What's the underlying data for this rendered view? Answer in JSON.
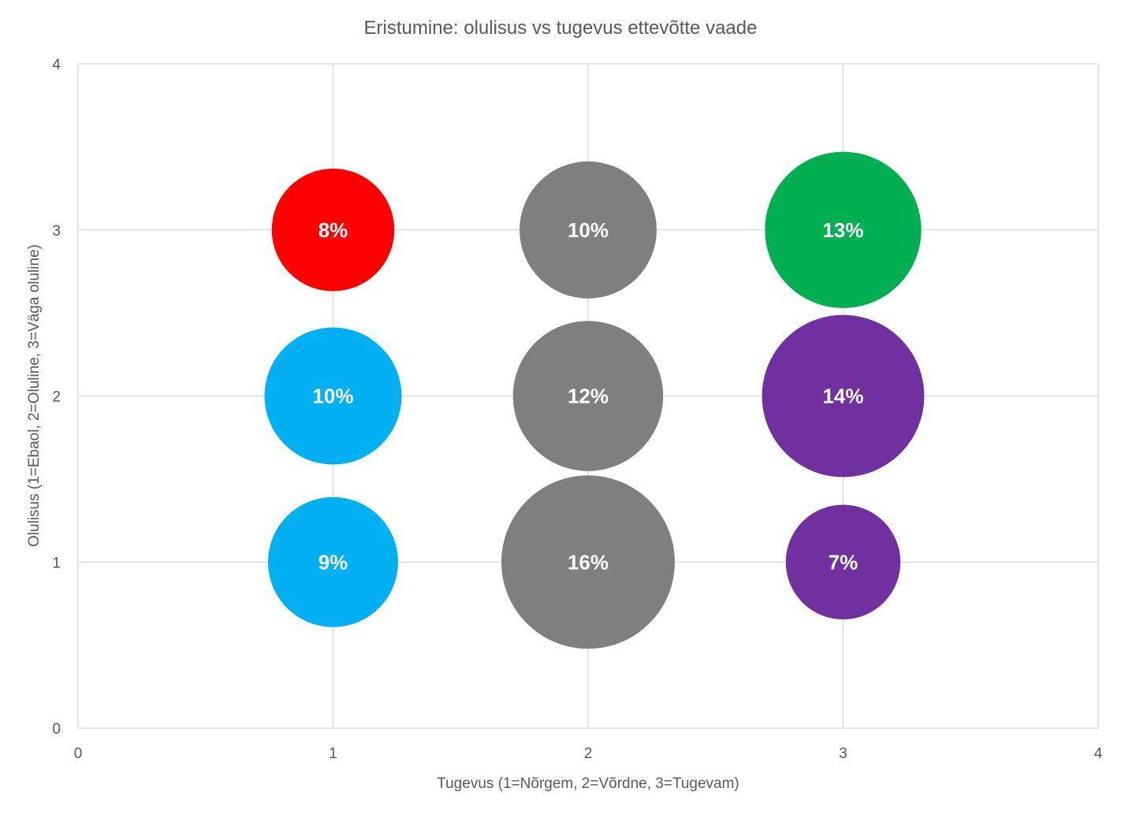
{
  "chart_data": {
    "type": "bubble",
    "title": "Eristumine: olulisus vs tugevus ettevõtte vaade",
    "xlabel": "Tugevus (1=Nõrgem, 2=Võrdne, 3=Tugevam)",
    "ylabel": "Olulisus (1=Ebaol, 2=Oluline, 3=Väga oluline)",
    "xlim": [
      0,
      4
    ],
    "ylim": [
      0,
      4
    ],
    "xticks": [
      "0",
      "1",
      "2",
      "3",
      "4"
    ],
    "yticks": [
      "0",
      "1",
      "2",
      "3",
      "4"
    ],
    "grid": true,
    "legend": "none",
    "points": [
      {
        "x": 1,
        "y": 3,
        "size": 8,
        "label": "8%",
        "color": "#FF0000"
      },
      {
        "x": 2,
        "y": 3,
        "size": 10,
        "label": "10%",
        "color": "#7F7F7F"
      },
      {
        "x": 3,
        "y": 3,
        "size": 13,
        "label": "13%",
        "color": "#00B050"
      },
      {
        "x": 1,
        "y": 2,
        "size": 10,
        "label": "10%",
        "color": "#00B0F0"
      },
      {
        "x": 2,
        "y": 2,
        "size": 12,
        "label": "12%",
        "color": "#7F7F7F"
      },
      {
        "x": 3,
        "y": 2,
        "size": 14,
        "label": "14%",
        "color": "#7030A0"
      },
      {
        "x": 1,
        "y": 1,
        "size": 9,
        "label": "9%",
        "color": "#00B0F0"
      },
      {
        "x": 2,
        "y": 1,
        "size": 16,
        "label": "16%",
        "color": "#7F7F7F"
      },
      {
        "x": 3,
        "y": 1,
        "size": 7,
        "label": "7%",
        "color": "#7030A0"
      }
    ]
  }
}
